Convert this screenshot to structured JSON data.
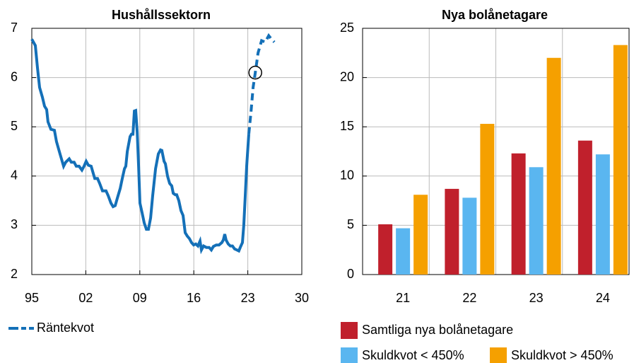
{
  "chart_data": [
    {
      "type": "line",
      "title": "Hushållssektorn",
      "xlim": [
        1995,
        2030
      ],
      "xticks": [
        {
          "value": 1995,
          "label": "95"
        },
        {
          "value": 2002,
          "label": "02"
        },
        {
          "value": 2009,
          "label": "09"
        },
        {
          "value": 2016,
          "label": "16"
        },
        {
          "value": 2023,
          "label": "23"
        },
        {
          "value": 2030,
          "label": "30"
        }
      ],
      "ylim": [
        2,
        7
      ],
      "yticks": [
        2,
        3,
        4,
        5,
        6,
        7
      ],
      "grid": true,
      "series": [
        {
          "name": "Räntekvot",
          "color": "#1470b8",
          "x": [
            1995.0,
            1995.46,
            1995.73,
            1996.01,
            1996.37,
            1996.65,
            1996.92,
            1997.1,
            1997.47,
            1997.93,
            1998.2,
            1998.66,
            1999.12,
            1999.39,
            1999.85,
            2000.12,
            2000.49,
            2000.76,
            2001.13,
            2001.5,
            2001.77,
            2002.05,
            2002.33,
            2002.7,
            2002.97,
            2003.16,
            2003.52,
            2003.8,
            2004.16,
            2004.62,
            2004.9,
            2005.26,
            2005.54,
            2005.81,
            2006.09,
            2006.46,
            2006.73,
            2007.01,
            2007.19,
            2007.38,
            2007.74,
            2007.92,
            2008.11,
            2008.29,
            2008.47,
            2008.66,
            2008.84,
            2009.02,
            2009.3,
            2009.57,
            2009.85,
            2010.12,
            2010.4,
            2010.67,
            2011.04,
            2011.4,
            2011.68,
            2011.86,
            2012.14,
            2012.32,
            2012.59,
            2012.87,
            2013.14,
            2013.33,
            2013.6,
            2013.78,
            2014.06,
            2014.33,
            2014.61,
            2014.88,
            2015.16,
            2015.43,
            2015.71,
            2015.98,
            2016.26,
            2016.53,
            2016.81,
            2016.99,
            2017.26,
            2017.63,
            2017.99,
            2018.27,
            2018.54,
            2018.91,
            2019.27,
            2019.64,
            2019.82,
            2020.01,
            2020.19,
            2020.46,
            2020.74,
            2021.01,
            2021.29,
            2021.57,
            2021.84,
            2022.02,
            2022.3,
            2022.48,
            2022.67,
            2022.85,
            2023.13
          ],
          "values": [
            6.78,
            6.65,
            6.2,
            5.8,
            5.6,
            5.42,
            5.35,
            5.1,
            4.95,
            4.93,
            4.7,
            4.45,
            4.2,
            4.28,
            4.35,
            4.28,
            4.28,
            4.2,
            4.2,
            4.12,
            4.2,
            4.3,
            4.22,
            4.2,
            4.05,
            3.95,
            3.95,
            3.85,
            3.7,
            3.7,
            3.6,
            3.45,
            3.38,
            3.4,
            3.55,
            3.75,
            3.95,
            4.15,
            4.2,
            4.5,
            4.8,
            4.85,
            4.85,
            5.32,
            5.33,
            4.9,
            4.2,
            3.45,
            3.25,
            3.05,
            2.92,
            2.92,
            3.15,
            3.6,
            4.15,
            4.45,
            4.53,
            4.52,
            4.3,
            4.25,
            4.0,
            3.85,
            3.8,
            3.65,
            3.62,
            3.62,
            3.5,
            3.3,
            3.2,
            2.85,
            2.78,
            2.73,
            2.65,
            2.6,
            2.62,
            2.58,
            2.68,
            2.5,
            2.58,
            2.55,
            2.55,
            2.5,
            2.57,
            2.6,
            2.6,
            2.65,
            2.7,
            2.82,
            2.7,
            2.62,
            2.58,
            2.58,
            2.52,
            2.5,
            2.48,
            2.55,
            2.65,
            3.0,
            3.6,
            4.2,
            4.85
          ],
          "forecast_x": [
            2023.13,
            2023.41,
            2023.69,
            2023.97,
            2024.33,
            2024.79,
            2025.25,
            2025.71,
            2026.07,
            2026.44
          ],
          "forecast_values": [
            4.85,
            5.3,
            5.8,
            6.1,
            6.5,
            6.75,
            6.72,
            6.85,
            6.78,
            6.72
          ]
        }
      ]
    },
    {
      "type": "bar",
      "title": "Nya bolånetagare",
      "categories": [
        "21",
        "22",
        "23",
        "24"
      ],
      "ylim": [
        0,
        25
      ],
      "yticks": [
        0,
        5,
        10,
        15,
        20,
        25
      ],
      "grid": true,
      "series": [
        {
          "name": "Samtliga nya bolånetagare",
          "color": "#c0202c",
          "values": [
            5.1,
            8.7,
            12.3,
            13.6
          ]
        },
        {
          "name": "Skuldkvot < 450%",
          "color": "#5ab6f0",
          "values": [
            4.7,
            7.8,
            10.9,
            12.2
          ]
        },
        {
          "name": "Skuldkvot > 450%",
          "color": "#f5a000",
          "values": [
            8.1,
            15.3,
            22.0,
            23.3
          ]
        }
      ]
    }
  ]
}
